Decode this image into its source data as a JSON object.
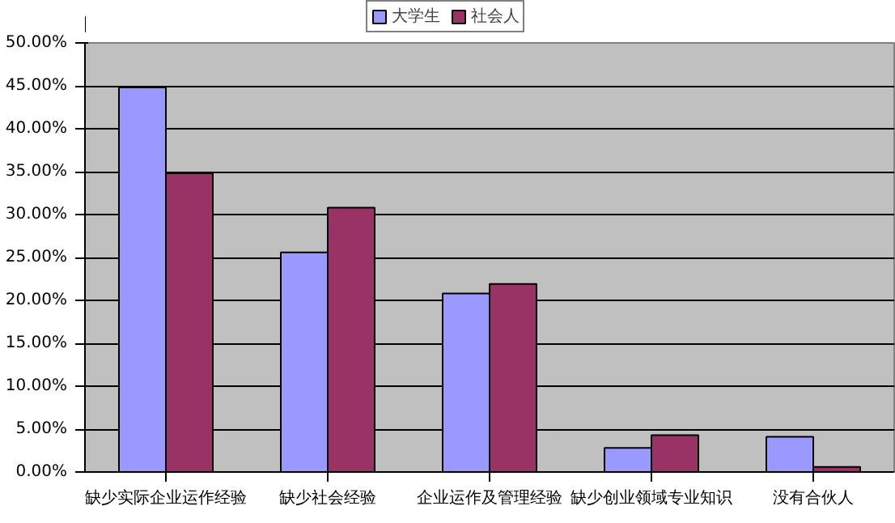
{
  "chart_data": {
    "type": "bar",
    "categories": [
      "缺少实际企业运作经验",
      "缺少社会经验",
      "企业运作及管理经验",
      "缺少创业领域专业知识",
      "没有合伙人"
    ],
    "series": [
      {
        "name": "大学生",
        "color": "#9999ff",
        "values": [
          44.8,
          25.6,
          20.8,
          2.8,
          4.1
        ]
      },
      {
        "name": "社会人",
        "color": "#993366",
        "values": [
          34.8,
          30.8,
          21.9,
          4.3,
          0.6
        ]
      }
    ],
    "ylim": [
      0,
      50
    ],
    "yticks": [
      {
        "value": 0,
        "label": "0.00%"
      },
      {
        "value": 5,
        "label": "5.00%"
      },
      {
        "value": 10,
        "label": "10.00%"
      },
      {
        "value": 15,
        "label": "15.00%"
      },
      {
        "value": 20,
        "label": "20.00%"
      },
      {
        "value": 25,
        "label": "25.00%"
      },
      {
        "value": 30,
        "label": "30.00%"
      },
      {
        "value": 35,
        "label": "35.00%"
      },
      {
        "value": 40,
        "label": "40.00%"
      },
      {
        "value": 45,
        "label": "45.00%"
      },
      {
        "value": 50,
        "label": "50.00%"
      }
    ],
    "grid": "y",
    "legend": "top"
  }
}
